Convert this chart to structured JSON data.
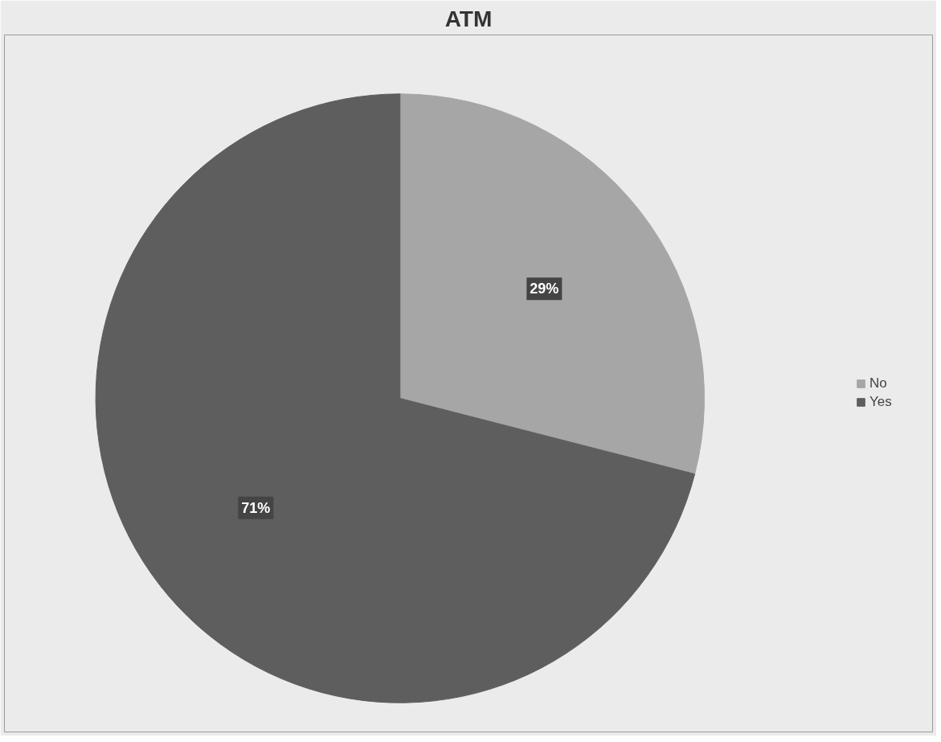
{
  "chart_data": {
    "type": "pie",
    "title": "ATM",
    "categories": [
      "No",
      "Yes"
    ],
    "values": [
      29,
      71
    ],
    "colors": [
      "#a6a6a6",
      "#5e5e5e"
    ],
    "value_labels": [
      "29%",
      "71%"
    ],
    "legend": "right"
  }
}
